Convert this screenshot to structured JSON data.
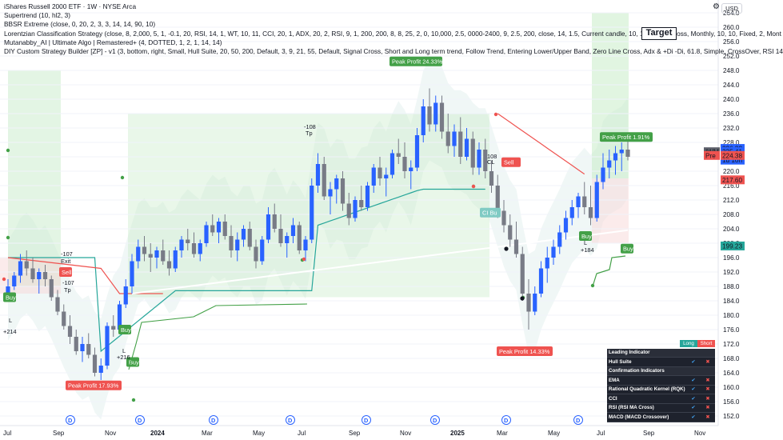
{
  "header": {
    "title": "iShares Russell 2000 ETF · 1W · NYSE Arca",
    "lines": [
      "Supertrend (10, hl2, 3)",
      "BBSR Extreme (close, 0, 20, 2, 3, 3, 14, 14, 90, 10)",
      "Lorentzian Classification Strategy (close, 8, 2,000, 5, 1, -0.1, 20, RSI, 14, 1, WT, 10, 11, CCI, 20, 1, ADX, 20, 2, RSI, 9, 1, 200, 200, 8, 8, 25, 2, 0, 10,000, 2.5, 0000-2400, 9, 2.5, 200, close, 14, 1.5, Current candle, 10, 10, Atr stop loss, Monthly, 10, 10, Fixed, 2, Mont",
      "Mutanabby_AI | Ultimate Algo | Remastered+ (4, DOTTED, 1, 2, 1, 14, 14)",
      "DIY Custom Strategy Builder [ZP] - v1 (3, bottom, right, Small, Hull Suite, 20, 50, 200, Default, 3, 9, 21, 55, Default, Signal Cross, Short and Long term trend, Follow Trend, Entering Lower/Upper Band, Zero Line Cross, Adx & +Di -Di, 61.8, Simple, CrossOver, RSI 14"
    ]
  },
  "toolbar": {
    "currency": "USD",
    "target_label": "Target",
    "gear_icon": "gear-icon"
  },
  "chart_data": {
    "type": "candlestick",
    "symbol": "IWM",
    "timeframe": "1W",
    "ylim": [
      152,
      264
    ],
    "y_ticks": [
      152,
      156,
      160,
      164,
      168,
      172,
      176,
      180,
      184,
      188,
      192,
      196,
      200,
      204,
      208,
      212,
      216,
      220,
      224,
      228,
      232,
      236,
      240,
      244,
      248,
      252,
      256,
      260,
      264
    ],
    "x_ticks": [
      "Jul",
      "Sep",
      "Nov",
      "2024",
      "Mar",
      "May",
      "Jul",
      "Sep",
      "Nov",
      "2025",
      "Mar",
      "May",
      "Jul",
      "Sep",
      "Nov"
    ],
    "ohlc": [
      [
        186,
        190,
        184,
        188
      ],
      [
        188,
        192,
        187,
        191
      ],
      [
        191,
        197,
        189,
        195
      ],
      [
        195,
        198,
        191,
        193
      ],
      [
        193,
        196,
        189,
        190
      ],
      [
        190,
        193,
        186,
        192
      ],
      [
        192,
        194,
        188,
        190
      ],
      [
        190,
        191,
        184,
        185
      ],
      [
        185,
        187,
        180,
        181
      ],
      [
        181,
        183,
        176,
        177
      ],
      [
        177,
        180,
        172,
        174
      ],
      [
        174,
        176,
        169,
        170
      ],
      [
        170,
        174,
        167,
        172
      ],
      [
        172,
        175,
        168,
        169
      ],
      [
        169,
        171,
        163,
        164
      ],
      [
        164,
        168,
        162,
        166
      ],
      [
        166,
        178,
        165,
        177
      ],
      [
        177,
        180,
        174,
        176
      ],
      [
        176,
        184,
        175,
        183
      ],
      [
        183,
        190,
        182,
        188
      ],
      [
        188,
        197,
        186,
        195
      ],
      [
        195,
        201,
        193,
        199
      ],
      [
        199,
        202,
        195,
        197
      ],
      [
        197,
        200,
        192,
        196
      ],
      [
        196,
        199,
        193,
        198
      ],
      [
        198,
        201,
        194,
        195
      ],
      [
        195,
        198,
        191,
        193
      ],
      [
        193,
        199,
        192,
        198
      ],
      [
        198,
        202,
        196,
        201
      ],
      [
        201,
        204,
        198,
        200
      ],
      [
        200,
        203,
        196,
        197
      ],
      [
        197,
        201,
        195,
        200
      ],
      [
        200,
        206,
        199,
        205
      ],
      [
        205,
        208,
        202,
        203
      ],
      [
        203,
        207,
        200,
        206
      ],
      [
        206,
        208,
        201,
        202
      ],
      [
        202,
        205,
        196,
        198
      ],
      [
        198,
        203,
        195,
        201
      ],
      [
        201,
        205,
        199,
        204
      ],
      [
        204,
        206,
        198,
        199
      ],
      [
        199,
        201,
        193,
        195
      ],
      [
        195,
        202,
        194,
        201
      ],
      [
        201,
        210,
        200,
        208
      ],
      [
        208,
        211,
        203,
        204
      ],
      [
        204,
        208,
        199,
        200
      ],
      [
        200,
        203,
        196,
        202
      ],
      [
        202,
        207,
        200,
        205
      ],
      [
        205,
        206,
        197,
        198
      ],
      [
        198,
        202,
        195,
        201
      ],
      [
        201,
        218,
        200,
        216
      ],
      [
        216,
        225,
        214,
        222
      ],
      [
        222,
        224,
        212,
        213
      ],
      [
        213,
        217,
        208,
        215
      ],
      [
        215,
        219,
        211,
        218
      ],
      [
        218,
        220,
        209,
        211
      ],
      [
        211,
        214,
        205,
        207
      ],
      [
        207,
        213,
        206,
        212
      ],
      [
        212,
        216,
        209,
        210
      ],
      [
        210,
        217,
        209,
        216
      ],
      [
        216,
        222,
        214,
        221
      ],
      [
        221,
        224,
        216,
        218
      ],
      [
        218,
        221,
        213,
        219
      ],
      [
        219,
        226,
        218,
        225
      ],
      [
        225,
        229,
        222,
        224
      ],
      [
        224,
        228,
        218,
        220
      ],
      [
        220,
        223,
        215,
        221
      ],
      [
        221,
        232,
        220,
        230
      ],
      [
        230,
        240,
        228,
        238
      ],
      [
        238,
        243,
        231,
        233
      ],
      [
        233,
        241,
        231,
        239
      ],
      [
        239,
        241,
        229,
        231
      ],
      [
        231,
        236,
        225,
        227
      ],
      [
        227,
        233,
        224,
        231
      ],
      [
        231,
        235,
        222,
        224
      ],
      [
        224,
        232,
        223,
        229
      ],
      [
        229,
        231,
        219,
        221
      ],
      [
        221,
        228,
        219,
        226
      ],
      [
        226,
        229,
        218,
        220
      ],
      [
        220,
        223,
        214,
        216
      ],
      [
        216,
        219,
        207,
        209
      ],
      [
        209,
        212,
        203,
        205
      ],
      [
        205,
        208,
        199,
        201
      ],
      [
        201,
        206,
        196,
        197
      ],
      [
        197,
        199,
        184,
        186
      ],
      [
        186,
        190,
        176,
        181
      ],
      [
        181,
        188,
        180,
        186
      ],
      [
        186,
        195,
        185,
        193
      ],
      [
        193,
        199,
        189,
        196
      ],
      [
        196,
        201,
        194,
        199
      ],
      [
        199,
        205,
        197,
        203
      ],
      [
        203,
        209,
        201,
        207
      ],
      [
        207,
        212,
        205,
        210
      ],
      [
        210,
        214,
        207,
        213
      ],
      [
        213,
        217,
        208,
        210
      ],
      [
        210,
        216,
        205,
        207
      ],
      [
        207,
        219,
        206,
        217
      ],
      [
        217,
        225,
        215,
        221
      ],
      [
        221,
        226,
        218,
        223
      ],
      [
        223,
        227,
        219,
        225
      ],
      [
        225,
        228,
        220,
        226
      ],
      [
        226,
        230,
        223,
        224
      ]
    ],
    "price_labels": [
      {
        "text": "226.32",
        "value": 226.32,
        "color": "#2962ff"
      },
      {
        "text": "225.41",
        "value": 225.41,
        "color": "#2962ff",
        "prefix": "IWM",
        "sub": "1d 10h"
      },
      {
        "text": "224.38",
        "value": 224.38,
        "color": "#ef5350",
        "prefix": "Pre"
      },
      {
        "text": "217.60",
        "value": 217.6,
        "color": "#ef5350"
      },
      {
        "text": "199.23",
        "value": 199.23,
        "color": "#26a69a"
      }
    ],
    "annotations": [
      {
        "text": "Peak Profit 24.33%",
        "kind": "green"
      },
      {
        "text": "Peak Profit 1.91%",
        "kind": "green"
      },
      {
        "text": "Peak Profit 17.93%",
        "kind": "red"
      },
      {
        "text": "Peak Profit 14.33%",
        "kind": "red"
      },
      {
        "text": "Sell",
        "kind": "red"
      },
      {
        "text": "CI Bu",
        "kind": "teal"
      },
      {
        "text": "Buy",
        "kind": "green"
      },
      {
        "text": "Buy",
        "kind": "green"
      },
      {
        "text": "Buy",
        "kind": "green"
      },
      {
        "text": "Buy",
        "kind": "green"
      },
      {
        "text": "Buy",
        "kind": "green"
      },
      {
        "text": "Sell",
        "kind": "red"
      }
    ],
    "text_marks": [
      "-108",
      "Tp",
      "-107",
      "Exit",
      "-107",
      "Tp",
      "L",
      "+214",
      "L",
      "+216",
      "108",
      "CL",
      "L",
      "+184"
    ]
  },
  "signal_table": {
    "col_long": "Long",
    "col_short": "Short",
    "rows": [
      {
        "label": "Leading Indicator",
        "section": true
      },
      {
        "label": "Hull Suite",
        "section": false
      },
      {
        "label": "Confirmation Indicators",
        "section": true
      },
      {
        "label": "EMA",
        "section": false
      },
      {
        "label": "Rational Quadratic Kernel (RQK)",
        "section": false
      },
      {
        "label": "CCI",
        "section": false
      },
      {
        "label": "RSI (RSI MA Cross)",
        "section": false
      },
      {
        "label": "MACD (MACD Crossover)",
        "section": false
      }
    ]
  }
}
